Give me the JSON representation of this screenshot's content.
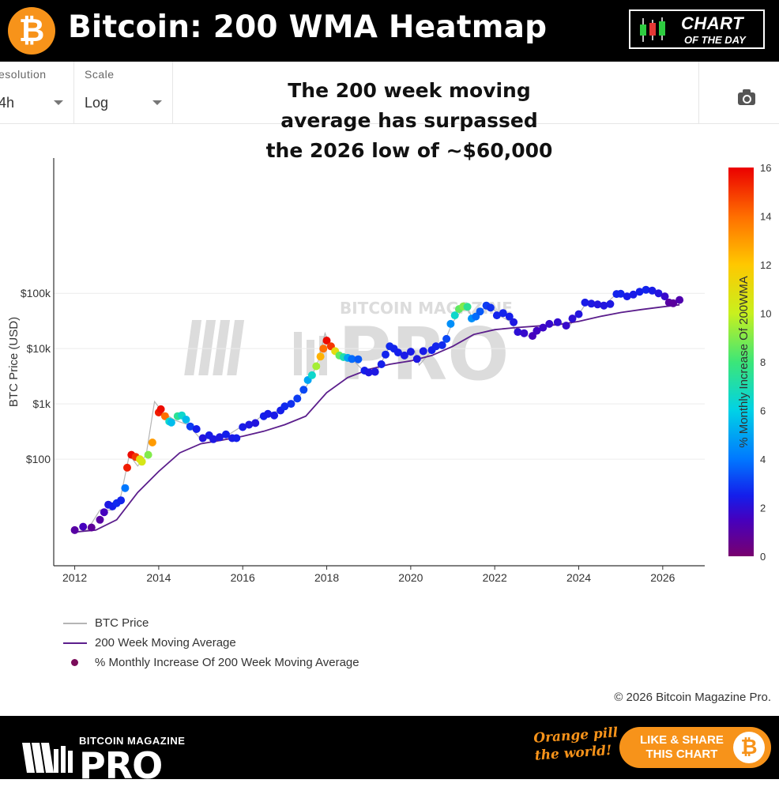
{
  "header": {
    "title": "Bitcoin: 200 WMA Heatmap",
    "btc_symbol": "₿",
    "badge_line1": "CHART",
    "badge_line2": "OF THE DAY"
  },
  "controls": {
    "resolution_label": "esolution",
    "resolution_value": "4h",
    "scale_label": "Scale",
    "scale_value": "Log"
  },
  "annotation": [
    "The 200 week moving",
    "average has surpassed",
    "the 2026 low of ~$60,000"
  ],
  "watermark": {
    "small": "BITCOIN MAGAZINE",
    "big": "PRO"
  },
  "legend": {
    "price": "BTC Price",
    "wma": "200 Week Moving Average",
    "dots": "% Monthly Increase Of 200 Week Moving Average"
  },
  "copyright": "© 2026 Bitcoin Magazine Pro.",
  "footer": {
    "brand_small": "BITCOIN MAGAZINE",
    "brand_big": "PRO",
    "tagline_1": "Orange pill",
    "tagline_2": "the world!",
    "share_1": "LIKE & SHARE",
    "share_2": "THIS CHART",
    "btc_symbol": "₿"
  },
  "colors": {
    "accent": "#f7931a",
    "wma_line": "#5b1e8c",
    "price_line": "#b5b5b5"
  },
  "chart_data": {
    "type": "scatter",
    "title": "Bitcoin: 200 WMA Heatmap",
    "xlabel": "",
    "ylabel": "BTC Price (USD)",
    "xlim": [
      2011.5,
      2027.0
    ],
    "x_ticks": [
      2012,
      2014,
      2016,
      2018,
      2020,
      2022,
      2024,
      2026
    ],
    "y_scale": "log",
    "ylim": [
      1.18,
      28000000
    ],
    "y_ticks": [
      {
        "value": 100,
        "label": "$100"
      },
      {
        "value": 1000,
        "label": "$1k"
      },
      {
        "value": 10000,
        "label": "$10k"
      },
      {
        "value": 100000,
        "label": "$100k"
      }
    ],
    "colorbar": {
      "label": "% Monthly Increase Of 200WMA",
      "min": 0,
      "max": 16,
      "ticks": [
        0,
        2,
        4,
        6,
        8,
        10,
        12,
        14,
        16
      ]
    },
    "grid": true,
    "legend_position": "bottom-left",
    "series": [
      {
        "name": "BTC Price",
        "type": "line",
        "points": [
          [
            2012.0,
            4.8
          ],
          [
            2012.3,
            5.2
          ],
          [
            2012.6,
            12
          ],
          [
            2012.9,
            12
          ],
          [
            2013.1,
            22
          ],
          [
            2013.3,
            120
          ],
          [
            2013.5,
            75
          ],
          [
            2013.7,
            120
          ],
          [
            2013.9,
            1100
          ],
          [
            2014.1,
            700
          ],
          [
            2014.4,
            500
          ],
          [
            2014.7,
            420
          ],
          [
            2015.0,
            230
          ],
          [
            2015.3,
            240
          ],
          [
            2015.6,
            260
          ],
          [
            2015.9,
            360
          ],
          [
            2016.2,
            420
          ],
          [
            2016.5,
            650
          ],
          [
            2016.8,
            730
          ],
          [
            2017.0,
            950
          ],
          [
            2017.3,
            1200
          ],
          [
            2017.6,
            2600
          ],
          [
            2017.8,
            6000
          ],
          [
            2017.96,
            19000
          ],
          [
            2018.1,
            10000
          ],
          [
            2018.3,
            7500
          ],
          [
            2018.6,
            6500
          ],
          [
            2018.9,
            3800
          ],
          [
            2019.2,
            4000
          ],
          [
            2019.5,
            11000
          ],
          [
            2019.8,
            8000
          ],
          [
            2020.1,
            9000
          ],
          [
            2020.2,
            5000
          ],
          [
            2020.5,
            9200
          ],
          [
            2020.8,
            13000
          ],
          [
            2021.0,
            30000
          ],
          [
            2021.3,
            60000
          ],
          [
            2021.5,
            33000
          ],
          [
            2021.85,
            66000
          ],
          [
            2022.1,
            40000
          ],
          [
            2022.4,
            30000
          ],
          [
            2022.5,
            20000
          ],
          [
            2022.9,
            16000
          ],
          [
            2023.2,
            24000
          ],
          [
            2023.5,
            30000
          ],
          [
            2023.8,
            27000
          ],
          [
            2024.0,
            42000
          ],
          [
            2024.2,
            70000
          ],
          [
            2024.6,
            60000
          ],
          [
            2024.9,
            98000
          ],
          [
            2025.2,
            85000
          ],
          [
            2025.5,
            108000
          ],
          [
            2025.8,
            115000
          ],
          [
            2026.0,
            90000
          ],
          [
            2026.15,
            68000
          ],
          [
            2026.25,
            62000
          ],
          [
            2026.4,
            75000
          ]
        ]
      },
      {
        "name": "200 Week Moving Average",
        "type": "line",
        "points": [
          [
            2012.0,
            4.8
          ],
          [
            2012.5,
            5.2
          ],
          [
            2013.0,
            8
          ],
          [
            2013.5,
            25
          ],
          [
            2014.0,
            60
          ],
          [
            2014.5,
            130
          ],
          [
            2015.0,
            190
          ],
          [
            2015.5,
            220
          ],
          [
            2016.0,
            260
          ],
          [
            2016.5,
            320
          ],
          [
            2017.0,
            420
          ],
          [
            2017.5,
            600
          ],
          [
            2018.0,
            1600
          ],
          [
            2018.5,
            3000
          ],
          [
            2019.0,
            4200
          ],
          [
            2019.5,
            5200
          ],
          [
            2020.0,
            6000
          ],
          [
            2020.5,
            7500
          ],
          [
            2021.0,
            11000
          ],
          [
            2021.5,
            18000
          ],
          [
            2022.0,
            22000
          ],
          [
            2022.5,
            24000
          ],
          [
            2023.0,
            25500
          ],
          [
            2023.5,
            27000
          ],
          [
            2024.0,
            31000
          ],
          [
            2024.5,
            38000
          ],
          [
            2025.0,
            45000
          ],
          [
            2025.5,
            51000
          ],
          [
            2026.0,
            57000
          ],
          [
            2026.4,
            62000
          ]
        ]
      },
      {
        "name": "% Monthly Increase Of 200 Week Moving Average",
        "type": "scatter",
        "points": [
          [
            2012.0,
            5.2,
            1.0
          ],
          [
            2012.2,
            6,
            1.5
          ],
          [
            2012.4,
            5.8,
            0.8
          ],
          [
            2012.6,
            8,
            1.0
          ],
          [
            2012.7,
            11,
            1.5
          ],
          [
            2012.8,
            15,
            2.3
          ],
          [
            2012.9,
            14,
            2.5
          ],
          [
            2013.0,
            16,
            2.7
          ],
          [
            2013.1,
            18,
            2.6
          ],
          [
            2013.2,
            30,
            4.0
          ],
          [
            2013.25,
            70,
            15.5
          ],
          [
            2013.35,
            120,
            15.8
          ],
          [
            2013.45,
            110,
            15.0
          ],
          [
            2013.55,
            100,
            11.0
          ],
          [
            2013.6,
            90,
            10.5
          ],
          [
            2013.75,
            120,
            9.0
          ],
          [
            2013.85,
            200,
            13.0
          ],
          [
            2014.0,
            700,
            15.5
          ],
          [
            2014.05,
            800,
            15.8
          ],
          [
            2014.15,
            600,
            14.0
          ],
          [
            2014.25,
            480,
            6.5
          ],
          [
            2014.3,
            460,
            5.5
          ],
          [
            2014.45,
            600,
            7.5
          ],
          [
            2014.55,
            620,
            6.5
          ],
          [
            2014.65,
            520,
            5.5
          ],
          [
            2014.75,
            390,
            3.0
          ],
          [
            2014.9,
            350,
            2.5
          ],
          [
            2015.05,
            240,
            2.2
          ],
          [
            2015.2,
            270,
            2.4
          ],
          [
            2015.3,
            230,
            2.3
          ],
          [
            2015.45,
            250,
            2.3
          ],
          [
            2015.6,
            280,
            2.5
          ],
          [
            2015.75,
            240,
            2.4
          ],
          [
            2015.85,
            240,
            2.5
          ],
          [
            2016.0,
            380,
            2.4
          ],
          [
            2016.15,
            420,
            2.3
          ],
          [
            2016.3,
            450,
            2.2
          ],
          [
            2016.5,
            600,
            2.5
          ],
          [
            2016.6,
            660,
            2.4
          ],
          [
            2016.75,
            620,
            2.4
          ],
          [
            2016.9,
            760,
            2.5
          ],
          [
            2017.0,
            900,
            2.7
          ],
          [
            2017.15,
            1000,
            2.8
          ],
          [
            2017.3,
            1250,
            3.0
          ],
          [
            2017.45,
            1800,
            3.2
          ],
          [
            2017.55,
            2700,
            5.0
          ],
          [
            2017.65,
            3300,
            6.5
          ],
          [
            2017.75,
            4800,
            9.5
          ],
          [
            2017.85,
            7200,
            12.5
          ],
          [
            2017.92,
            10000,
            14.0
          ],
          [
            2018.0,
            14000,
            15.8
          ],
          [
            2018.1,
            11000,
            15.0
          ],
          [
            2018.2,
            9000,
            11.0
          ],
          [
            2018.3,
            7500,
            8.5
          ],
          [
            2018.4,
            7000,
            7.0
          ],
          [
            2018.5,
            6800,
            5.0
          ],
          [
            2018.6,
            6500,
            3.8
          ],
          [
            2018.75,
            6400,
            3.5
          ],
          [
            2018.9,
            4000,
            2.5
          ],
          [
            2019.0,
            3700,
            2.3
          ],
          [
            2019.15,
            3800,
            2.3
          ],
          [
            2019.3,
            5200,
            2.5
          ],
          [
            2019.4,
            7800,
            2.6
          ],
          [
            2019.5,
            11000,
            2.7
          ],
          [
            2019.6,
            10000,
            2.6
          ],
          [
            2019.7,
            8500,
            2.5
          ],
          [
            2019.85,
            7500,
            2.4
          ],
          [
            2020.0,
            8800,
            2.4
          ],
          [
            2020.15,
            6500,
            2.3
          ],
          [
            2020.3,
            9000,
            2.4
          ],
          [
            2020.5,
            9400,
            2.5
          ],
          [
            2020.6,
            11000,
            2.6
          ],
          [
            2020.75,
            11500,
            2.7
          ],
          [
            2020.85,
            15000,
            3.2
          ],
          [
            2020.95,
            28000,
            4.5
          ],
          [
            2021.05,
            40000,
            6.5
          ],
          [
            2021.15,
            52000,
            8.5
          ],
          [
            2021.25,
            58000,
            9.0
          ],
          [
            2021.35,
            57000,
            7.5
          ],
          [
            2021.45,
            35000,
            4.5
          ],
          [
            2021.55,
            38000,
            3.8
          ],
          [
            2021.65,
            47000,
            3.5
          ],
          [
            2021.8,
            60000,
            3.0
          ],
          [
            2021.9,
            55000,
            2.8
          ],
          [
            2022.05,
            40000,
            2.6
          ],
          [
            2022.2,
            44000,
            2.6
          ],
          [
            2022.35,
            38000,
            2.5
          ],
          [
            2022.45,
            30000,
            2.3
          ],
          [
            2022.55,
            20000,
            2.0
          ],
          [
            2022.7,
            19000,
            1.8
          ],
          [
            2022.9,
            17000,
            1.5
          ],
          [
            2023.0,
            21000,
            1.6
          ],
          [
            2023.15,
            24000,
            1.7
          ],
          [
            2023.3,
            28000,
            1.8
          ],
          [
            2023.5,
            30000,
            1.9
          ],
          [
            2023.7,
            26000,
            1.8
          ],
          [
            2023.85,
            35000,
            2.0
          ],
          [
            2024.0,
            42000,
            2.2
          ],
          [
            2024.15,
            68000,
            2.4
          ],
          [
            2024.3,
            65000,
            2.3
          ],
          [
            2024.45,
            63000,
            2.2
          ],
          [
            2024.6,
            60000,
            2.2
          ],
          [
            2024.75,
            64000,
            2.3
          ],
          [
            2024.9,
            97000,
            2.6
          ],
          [
            2025.0,
            98000,
            2.6
          ],
          [
            2025.15,
            88000,
            2.4
          ],
          [
            2025.3,
            95000,
            2.4
          ],
          [
            2025.45,
            107000,
            2.5
          ],
          [
            2025.6,
            116000,
            2.6
          ],
          [
            2025.75,
            112000,
            2.4
          ],
          [
            2025.9,
            100000,
            2.2
          ],
          [
            2026.05,
            88000,
            1.8
          ],
          [
            2026.15,
            68000,
            1.0
          ],
          [
            2026.25,
            66000,
            0.9
          ],
          [
            2026.4,
            76000,
            1.2
          ]
        ]
      }
    ]
  }
}
